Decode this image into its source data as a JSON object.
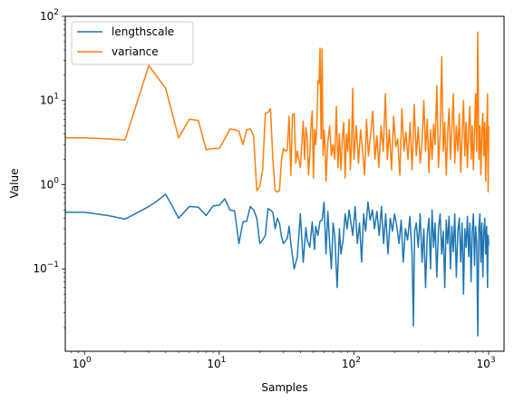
{
  "chart_data": {
    "type": "line",
    "title": "",
    "xlabel": "Samples",
    "ylabel": "Value",
    "x_scale": "log",
    "y_scale": "log",
    "xlim": [
      0.72,
      1300
    ],
    "ylim": [
      0.0105,
      100
    ],
    "x_ticks": [
      {
        "value": 1,
        "base": "10",
        "exp": "0"
      },
      {
        "value": 10,
        "base": "10",
        "exp": "1"
      },
      {
        "value": 100,
        "base": "10",
        "exp": "2"
      },
      {
        "value": 1000,
        "base": "10",
        "exp": "3"
      }
    ],
    "y_ticks": [
      {
        "value": 0.1,
        "base": "10",
        "exp": "−1"
      },
      {
        "value": 1,
        "base": "10",
        "exp": "0"
      },
      {
        "value": 10,
        "base": "10",
        "exp": "1"
      },
      {
        "value": 100,
        "base": "10",
        "exp": "2"
      }
    ],
    "grid": false,
    "legend_position": "top-left",
    "series": [
      {
        "name": "lengthscale",
        "color": "#1f77b4",
        "points": [
          [
            0.72,
            0.47
          ],
          [
            0.85,
            0.47
          ],
          [
            1,
            0.47
          ],
          [
            1.5,
            0.43
          ],
          [
            2,
            0.39
          ],
          [
            3,
            0.55
          ],
          [
            3.5,
            0.65
          ],
          [
            4,
            0.77
          ],
          [
            4.5,
            0.55
          ],
          [
            5,
            0.4
          ],
          [
            6,
            0.55
          ],
          [
            7,
            0.54
          ],
          [
            8,
            0.43
          ],
          [
            9,
            0.56
          ],
          [
            10,
            0.57
          ],
          [
            11,
            0.68
          ],
          [
            12,
            0.5
          ],
          [
            13,
            0.49
          ],
          [
            14,
            0.2
          ],
          [
            15,
            0.36
          ],
          [
            16,
            0.37
          ],
          [
            17,
            0.55
          ],
          [
            18,
            0.5
          ],
          [
            19,
            0.4
          ],
          [
            20,
            0.2
          ],
          [
            21,
            0.22
          ],
          [
            22,
            0.25
          ],
          [
            23,
            0.52
          ],
          [
            24,
            0.5
          ],
          [
            25,
            0.47
          ],
          [
            26,
            0.3
          ],
          [
            27,
            0.4
          ],
          [
            28,
            0.35
          ],
          [
            29,
            0.24
          ],
          [
            30,
            0.2
          ],
          [
            32,
            0.23
          ],
          [
            33,
            0.32
          ],
          [
            34,
            0.2
          ],
          [
            36,
            0.1
          ],
          [
            38,
            0.14
          ],
          [
            40,
            0.45
          ],
          [
            42,
            0.12
          ],
          [
            44,
            0.31
          ],
          [
            45,
            0.22
          ],
          [
            47,
            0.18
          ],
          [
            49,
            0.36
          ],
          [
            51,
            0.17
          ],
          [
            52,
            0.32
          ],
          [
            54,
            0.25
          ],
          [
            56,
            0.37
          ],
          [
            58,
            0.38
          ],
          [
            60,
            0.62
          ],
          [
            62,
            0.15
          ],
          [
            64,
            0.48
          ],
          [
            66,
            0.2
          ],
          [
            68,
            0.1
          ],
          [
            70,
            0.35
          ],
          [
            72,
            0.25
          ],
          [
            75,
            0.06
          ],
          [
            78,
            0.3
          ],
          [
            80,
            0.15
          ],
          [
            83,
            0.22
          ],
          [
            86,
            0.45
          ],
          [
            89,
            0.3
          ],
          [
            92,
            0.5
          ],
          [
            95,
            0.35
          ],
          [
            98,
            0.25
          ],
          [
            102,
            0.55
          ],
          [
            106,
            0.2
          ],
          [
            110,
            0.35
          ],
          [
            114,
            0.12
          ],
          [
            118,
            0.45
          ],
          [
            122,
            0.28
          ],
          [
            127,
            0.62
          ],
          [
            132,
            0.38
          ],
          [
            137,
            0.5
          ],
          [
            142,
            0.3
          ],
          [
            148,
            0.48
          ],
          [
            154,
            0.25
          ],
          [
            160,
            0.55
          ],
          [
            166,
            0.2
          ],
          [
            172,
            0.45
          ],
          [
            179,
            0.15
          ],
          [
            186,
            0.4
          ],
          [
            193,
            0.28
          ],
          [
            200,
            0.45
          ],
          [
            208,
            0.32
          ],
          [
            216,
            0.2
          ],
          [
            224,
            0.38
          ],
          [
            232,
            0.12
          ],
          [
            241,
            0.3
          ],
          [
            250,
            0.22
          ],
          [
            260,
            0.42
          ],
          [
            270,
            0.15
          ],
          [
            276,
            0.021
          ],
          [
            282,
            0.28
          ],
          [
            290,
            0.35
          ],
          [
            300,
            0.18
          ],
          [
            310,
            0.45
          ],
          [
            320,
            0.12
          ],
          [
            330,
            0.3
          ],
          [
            340,
            0.06
          ],
          [
            350,
            0.25
          ],
          [
            360,
            0.4
          ],
          [
            370,
            0.1
          ],
          [
            380,
            0.5
          ],
          [
            390,
            0.18
          ],
          [
            400,
            0.35
          ],
          [
            412,
            0.08
          ],
          [
            424,
            0.3
          ],
          [
            436,
            0.45
          ],
          [
            448,
            0.15
          ],
          [
            460,
            0.28
          ],
          [
            472,
            0.06
          ],
          [
            484,
            0.38
          ],
          [
            496,
            0.2
          ],
          [
            508,
            0.42
          ],
          [
            520,
            0.1
          ],
          [
            533,
            0.32
          ],
          [
            546,
            0.16
          ],
          [
            560,
            0.45
          ],
          [
            575,
            0.08
          ],
          [
            590,
            0.28
          ],
          [
            605,
            0.4
          ],
          [
            620,
            0.12
          ],
          [
            635,
            0.35
          ],
          [
            650,
            0.05
          ],
          [
            665,
            0.3
          ],
          [
            680,
            0.18
          ],
          [
            695,
            0.42
          ],
          [
            710,
            0.14
          ],
          [
            725,
            0.35
          ],
          [
            740,
            0.07
          ],
          [
            755,
            0.28
          ],
          [
            770,
            0.45
          ],
          [
            785,
            0.11
          ],
          [
            800,
            0.32
          ],
          [
            815,
            0.2
          ],
          [
            830,
            0.016
          ],
          [
            845,
            0.3
          ],
          [
            860,
            0.45
          ],
          [
            875,
            0.12
          ],
          [
            890,
            0.35
          ],
          [
            905,
            0.08
          ],
          [
            920,
            0.28
          ],
          [
            935,
            0.4
          ],
          [
            950,
            0.15
          ],
          [
            965,
            0.32
          ],
          [
            980,
            0.06
          ],
          [
            990,
            0.25
          ],
          [
            1000,
            0.19
          ]
        ]
      },
      {
        "name": "variance",
        "color": "#ff7f0e",
        "points": [
          [
            0.72,
            3.6
          ],
          [
            0.85,
            3.6
          ],
          [
            1,
            3.6
          ],
          [
            1.5,
            3.5
          ],
          [
            2,
            3.4
          ],
          [
            3,
            26
          ],
          [
            4,
            14
          ],
          [
            5,
            3.6
          ],
          [
            6,
            6.0
          ],
          [
            7,
            5.8
          ],
          [
            8,
            2.6
          ],
          [
            9,
            2.7
          ],
          [
            10,
            2.7
          ],
          [
            11,
            3.5
          ],
          [
            12,
            4.6
          ],
          [
            13,
            4.5
          ],
          [
            14,
            4.3
          ],
          [
            15,
            3.0
          ],
          [
            16,
            4.5
          ],
          [
            17,
            4.6
          ],
          [
            18,
            3.8
          ],
          [
            19,
            0.85
          ],
          [
            20,
            0.95
          ],
          [
            21,
            1.5
          ],
          [
            22,
            7.0
          ],
          [
            23,
            7.2
          ],
          [
            24,
            8.0
          ],
          [
            25,
            2.0
          ],
          [
            26,
            0.85
          ],
          [
            27,
            0.82
          ],
          [
            28,
            0.85
          ],
          [
            29,
            2.0
          ],
          [
            30,
            2.7
          ],
          [
            31,
            2.5
          ],
          [
            32,
            2.6
          ],
          [
            33,
            6.5
          ],
          [
            34,
            1.3
          ],
          [
            35,
            6.8
          ],
          [
            36,
            7.0
          ],
          [
            37,
            1.8
          ],
          [
            38,
            2.5
          ],
          [
            40,
            1.6
          ],
          [
            42,
            5.7
          ],
          [
            43,
            2.0
          ],
          [
            44,
            4.8
          ],
          [
            45,
            3.5
          ],
          [
            46,
            1.3
          ],
          [
            47,
            2.2
          ],
          [
            48,
            5.0
          ],
          [
            49,
            7.5
          ],
          [
            50,
            1.2
          ],
          [
            51,
            4.5
          ],
          [
            52,
            3.0
          ],
          [
            53,
            4.8
          ],
          [
            54,
            17
          ],
          [
            55,
            16
          ],
          [
            56,
            42
          ],
          [
            57,
            3.5
          ],
          [
            58,
            41
          ],
          [
            59,
            2.2
          ],
          [
            60,
            4.5
          ],
          [
            61,
            3.0
          ],
          [
            62,
            1.1
          ],
          [
            64,
            3.2
          ],
          [
            66,
            5.0
          ],
          [
            68,
            2.2
          ],
          [
            70,
            3.0
          ],
          [
            72,
            2.0
          ],
          [
            74,
            8.5
          ],
          [
            76,
            1.6
          ],
          [
            78,
            4.0
          ],
          [
            80,
            1.5
          ],
          [
            82,
            3.5
          ],
          [
            84,
            5.5
          ],
          [
            86,
            1.2
          ],
          [
            88,
            4.0
          ],
          [
            90,
            2.5
          ],
          [
            92,
            6.0
          ],
          [
            94,
            1.5
          ],
          [
            96,
            3.0
          ],
          [
            98,
            14
          ],
          [
            100,
            2.0
          ],
          [
            104,
            5.0
          ],
          [
            108,
            1.8
          ],
          [
            112,
            4.5
          ],
          [
            116,
            2.5
          ],
          [
            120,
            1.3
          ],
          [
            124,
            6.0
          ],
          [
            128,
            2.2
          ],
          [
            133,
            4.0
          ],
          [
            138,
            7.5
          ],
          [
            143,
            2.0
          ],
          [
            148,
            3.8
          ],
          [
            153,
            1.6
          ],
          [
            159,
            5.0
          ],
          [
            165,
            2.5
          ],
          [
            171,
            12
          ],
          [
            177,
            2.0
          ],
          [
            183,
            4.5
          ],
          [
            190,
            1.5
          ],
          [
            197,
            6.5
          ],
          [
            204,
            2.8
          ],
          [
            211,
            3.5
          ],
          [
            219,
            1.3
          ],
          [
            227,
            8.0
          ],
          [
            235,
            2.5
          ],
          [
            243,
            4.2
          ],
          [
            252,
            2.0
          ],
          [
            261,
            5.5
          ],
          [
            270,
            1.5
          ],
          [
            280,
            9.0
          ],
          [
            290,
            2.2
          ],
          [
            300,
            4.8
          ],
          [
            310,
            1.8
          ],
          [
            320,
            3.2
          ],
          [
            330,
            10
          ],
          [
            340,
            2.5
          ],
          [
            350,
            6.0
          ],
          [
            360,
            1.4
          ],
          [
            370,
            4.5
          ],
          [
            380,
            2.0
          ],
          [
            390,
            5.2
          ],
          [
            400,
            3.0
          ],
          [
            412,
            15
          ],
          [
            424,
            1.6
          ],
          [
            436,
            4.0
          ],
          [
            448,
            33
          ],
          [
            460,
            2.5
          ],
          [
            472,
            5.5
          ],
          [
            484,
            1.3
          ],
          [
            496,
            4.2
          ],
          [
            508,
            8.0
          ],
          [
            520,
            2.0
          ],
          [
            533,
            4.8
          ],
          [
            546,
            12
          ],
          [
            560,
            1.8
          ],
          [
            575,
            5.0
          ],
          [
            590,
            2.5
          ],
          [
            605,
            7.0
          ],
          [
            620,
            1.4
          ],
          [
            635,
            4.0
          ],
          [
            650,
            10
          ],
          [
            665,
            2.2
          ],
          [
            680,
            5.5
          ],
          [
            695,
            1.6
          ],
          [
            710,
            4.5
          ],
          [
            725,
            8.5
          ],
          [
            740,
            2.0
          ],
          [
            755,
            5.0
          ],
          [
            770,
            1.5
          ],
          [
            785,
            4.2
          ],
          [
            800,
            12
          ],
          [
            815,
            2.5
          ],
          [
            830,
            65
          ],
          [
            845,
            2.0
          ],
          [
            860,
            5.0
          ],
          [
            875,
            1.3
          ],
          [
            890,
            4.5
          ],
          [
            905,
            7.0
          ],
          [
            920,
            2.2
          ],
          [
            935,
            5.5
          ],
          [
            950,
            1.1
          ],
          [
            965,
            4.0
          ],
          [
            980,
            12
          ],
          [
            990,
            0.82
          ],
          [
            1000,
            5.0
          ]
        ]
      }
    ]
  }
}
